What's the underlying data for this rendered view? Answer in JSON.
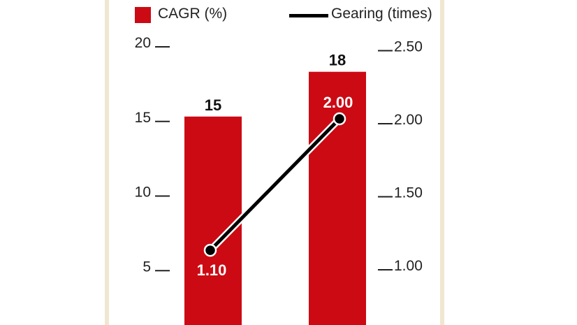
{
  "legend": {
    "bar_label": "CAGR (%)",
    "line_label": "Gearing (times)"
  },
  "colors": {
    "bar": "#cc0a14",
    "line": "#000000",
    "panel_border": "#efe7cf"
  },
  "chart_data": {
    "type": "bar",
    "categories": [
      "",
      ""
    ],
    "series": [
      {
        "name": "CAGR (%)",
        "type": "bar",
        "axis": "left",
        "values": [
          15,
          18
        ],
        "labels": [
          "15",
          "18"
        ]
      },
      {
        "name": "Gearing (times)",
        "type": "line",
        "axis": "right",
        "values": [
          1.1,
          2.0
        ],
        "labels": [
          "1.10",
          "2.00"
        ]
      }
    ],
    "y_left": {
      "ticks": [
        5,
        10,
        15,
        20
      ],
      "tick_labels": [
        "5",
        "10",
        "15",
        "20"
      ],
      "range": [
        0,
        20
      ]
    },
    "y_right": {
      "ticks": [
        1.0,
        1.5,
        2.0,
        2.5
      ],
      "tick_labels": [
        "1.00",
        "1.50",
        "2.00",
        "2.50"
      ],
      "range": [
        0.5,
        2.5
      ]
    },
    "grid": false,
    "legend_position": "top"
  }
}
